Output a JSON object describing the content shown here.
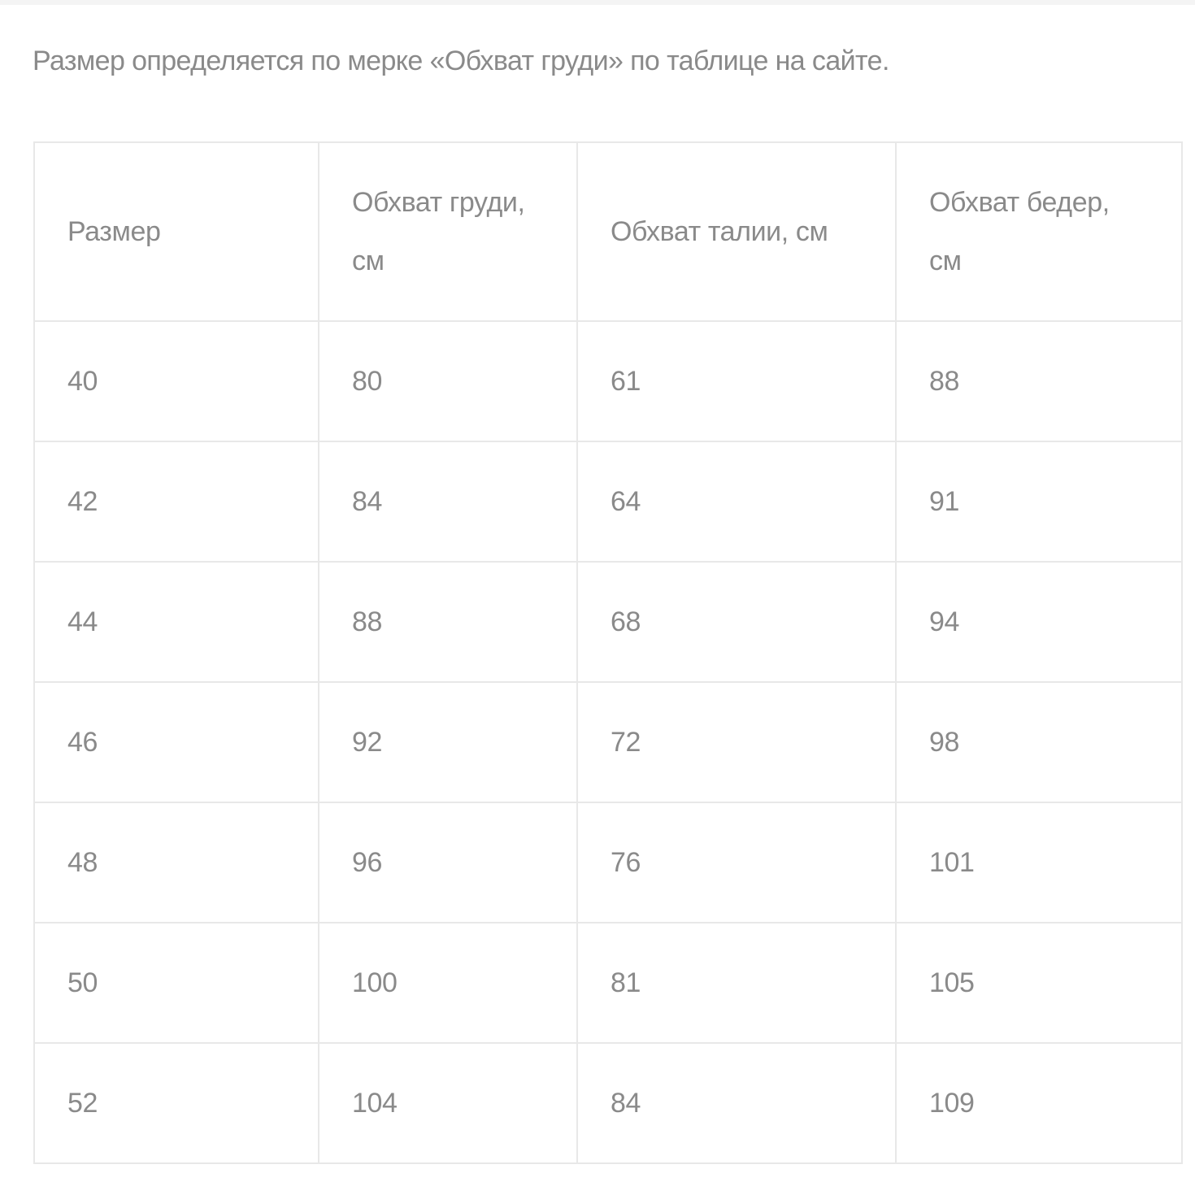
{
  "intro": "Размер определяется по мерке «Обхват груди» по таблице на сайте.",
  "table": {
    "headers": [
      "Размер",
      "Обхват груди, см",
      "Обхват талии, см",
      "Обхват бедер, см"
    ],
    "rows": [
      [
        "40",
        "80",
        "61",
        "88"
      ],
      [
        "42",
        "84",
        "64",
        "91"
      ],
      [
        "44",
        "88",
        "68",
        "94"
      ],
      [
        "46",
        "92",
        "72",
        "98"
      ],
      [
        "48",
        "96",
        "76",
        "101"
      ],
      [
        "50",
        "100",
        "81",
        "105"
      ],
      [
        "52",
        "104",
        "84",
        "109"
      ]
    ]
  }
}
